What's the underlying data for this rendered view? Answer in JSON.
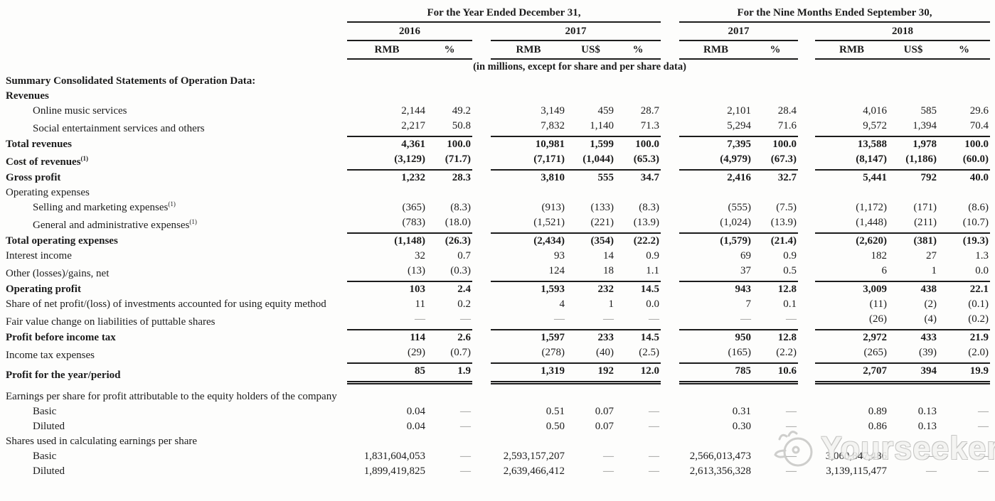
{
  "header": {
    "group1": {
      "title": "For the Year Ended December 31,",
      "years": [
        {
          "label": "2016",
          "cols": [
            "RMB",
            "%"
          ]
        },
        {
          "label": "2017",
          "cols": [
            "RMB",
            "US$",
            "%"
          ]
        }
      ]
    },
    "group2": {
      "title": "For the Nine Months Ended September 30,",
      "years": [
        {
          "label": "2017",
          "cols": [
            "RMB",
            "%"
          ]
        },
        {
          "label": "2018",
          "cols": [
            "RMB",
            "US$",
            "%"
          ]
        }
      ]
    },
    "note": "(in millions, except for share and per share data)"
  },
  "table": {
    "column_order": [
      "2016 RMB",
      "2016 %",
      "2017 RMB",
      "2017 US$",
      "2017 %",
      "9M2017 RMB",
      "9M2017 %",
      "9M2018 RMB",
      "9M2018 US$",
      "9M2018 %"
    ],
    "rows": [
      {
        "label": "Summary Consolidated Statements of Operation Data:",
        "bold": true,
        "values": []
      },
      {
        "label": "Revenues",
        "bold": true,
        "values": []
      },
      {
        "label": "Online music services",
        "indent": true,
        "values": [
          "2,144",
          "49.2",
          "3,149",
          "459",
          "28.7",
          "2,101",
          "28.4",
          "4,016",
          "585",
          "29.6"
        ]
      },
      {
        "label": "Social entertainment services and others",
        "indent": true,
        "rule": "single",
        "values": [
          "2,217",
          "50.8",
          "7,832",
          "1,140",
          "71.3",
          "5,294",
          "71.6",
          "9,572",
          "1,394",
          "70.4"
        ]
      },
      {
        "label": "Total revenues",
        "bold": true,
        "values": [
          "4,361",
          "100.0",
          "10,981",
          "1,599",
          "100.0",
          "7,395",
          "100.0",
          "13,588",
          "1,978",
          "100.0"
        ]
      },
      {
        "label": "Cost of revenues",
        "sup": "(1)",
        "bold": true,
        "rule": "single",
        "values": [
          "(3,129)",
          "(71.7)",
          "(7,171)",
          "(1,044)",
          "(65.3)",
          "(4,979)",
          "(67.3)",
          "(8,147)",
          "(1,186)",
          "(60.0)"
        ]
      },
      {
        "label": "Gross profit",
        "bold": true,
        "values": [
          "1,232",
          "28.3",
          "3,810",
          "555",
          "34.7",
          "2,416",
          "32.7",
          "5,441",
          "792",
          "40.0"
        ]
      },
      {
        "label": "Operating expenses",
        "values": []
      },
      {
        "label": "Selling and marketing expenses",
        "sup": "(1)",
        "indent": true,
        "values": [
          "(365)",
          "(8.3)",
          "(913)",
          "(133)",
          "(8.3)",
          "(555)",
          "(7.5)",
          "(1,172)",
          "(171)",
          "(8.6)"
        ]
      },
      {
        "label": "General and administrative expenses",
        "sup": "(1)",
        "indent": true,
        "rule": "single",
        "values": [
          "(783)",
          "(18.0)",
          "(1,521)",
          "(221)",
          "(13.9)",
          "(1,024)",
          "(13.9)",
          "(1,448)",
          "(211)",
          "(10.7)"
        ]
      },
      {
        "label": "Total operating expenses",
        "bold": true,
        "values": [
          "(1,148)",
          "(26.3)",
          "(2,434)",
          "(354)",
          "(22.2)",
          "(1,579)",
          "(21.4)",
          "(2,620)",
          "(381)",
          "(19.3)"
        ]
      },
      {
        "label": "Interest income",
        "values": [
          "32",
          "0.7",
          "93",
          "14",
          "0.9",
          "69",
          "0.9",
          "182",
          "27",
          "1.3"
        ]
      },
      {
        "label": "Other (losses)/gains, net",
        "rule": "single",
        "values": [
          "(13)",
          "(0.3)",
          "124",
          "18",
          "1.1",
          "37",
          "0.5",
          "6",
          "1",
          "0.0"
        ]
      },
      {
        "label": "Operating profit",
        "bold": true,
        "values": [
          "103",
          "2.4",
          "1,593",
          "232",
          "14.5",
          "943",
          "12.8",
          "3,009",
          "438",
          "22.1"
        ]
      },
      {
        "label": "Share of net profit/(loss) of investments accounted for using equity method",
        "hang": true,
        "values": [
          "11",
          "0.2",
          "4",
          "1",
          "0.0",
          "7",
          "0.1",
          "(11)",
          "(2)",
          "(0.1)"
        ]
      },
      {
        "label": "Fair value change on liabilities of puttable shares",
        "rule": "single",
        "values": [
          "—",
          "—",
          "—",
          "—",
          "—",
          "—",
          "—",
          "(26)",
          "(4)",
          "(0.2)"
        ]
      },
      {
        "label": "Profit before income tax",
        "bold": true,
        "values": [
          "114",
          "2.6",
          "1,597",
          "233",
          "14.5",
          "950",
          "12.8",
          "2,972",
          "433",
          "21.9"
        ]
      },
      {
        "label": "Income tax expenses",
        "rule": "single",
        "values": [
          "(29)",
          "(0.7)",
          "(278)",
          "(40)",
          "(2.5)",
          "(165)",
          "(2.2)",
          "(265)",
          "(39)",
          "(2.0)"
        ]
      },
      {
        "label": "Profit for the year/period",
        "bold": true,
        "rule": "double",
        "values": [
          "85",
          "1.9",
          "1,319",
          "192",
          "12.0",
          "785",
          "10.6",
          "2,707",
          "394",
          "19.9"
        ]
      },
      {
        "label": "Earnings per share for profit attributable to the equity holders of the company",
        "hang": true,
        "pad_top": true,
        "values": []
      },
      {
        "label": "Basic",
        "indent": true,
        "values": [
          "0.04",
          "—",
          "0.51",
          "0.07",
          "—",
          "0.31",
          "—",
          "0.89",
          "0.13",
          "—"
        ]
      },
      {
        "label": "Diluted",
        "indent": true,
        "values": [
          "0.04",
          "—",
          "0.50",
          "0.07",
          "—",
          "0.30",
          "—",
          "0.86",
          "0.13",
          "—"
        ]
      },
      {
        "label": "Shares used in calculating earnings per share",
        "values": []
      },
      {
        "label": "Basic",
        "indent": true,
        "values": [
          "1,831,604,053",
          "—",
          "2,593,157,207",
          "—",
          "—",
          "2,566,013,473",
          "—",
          "3,060,847,486",
          "—",
          "—"
        ]
      },
      {
        "label": "Diluted",
        "indent": true,
        "values": [
          "1,899,419,825",
          "—",
          "2,639,466,412",
          "—",
          "—",
          "2,613,356,328",
          "—",
          "3,139,115,477",
          "—",
          "—"
        ]
      }
    ]
  },
  "watermark": {
    "text": "Yourseeker"
  },
  "colors": {
    "text": "#1c1c1c",
    "rule": "#1c1c1c",
    "dash": "#8a8a8a",
    "watermark": "#c6c6c4",
    "background": "#fdfdfc"
  }
}
